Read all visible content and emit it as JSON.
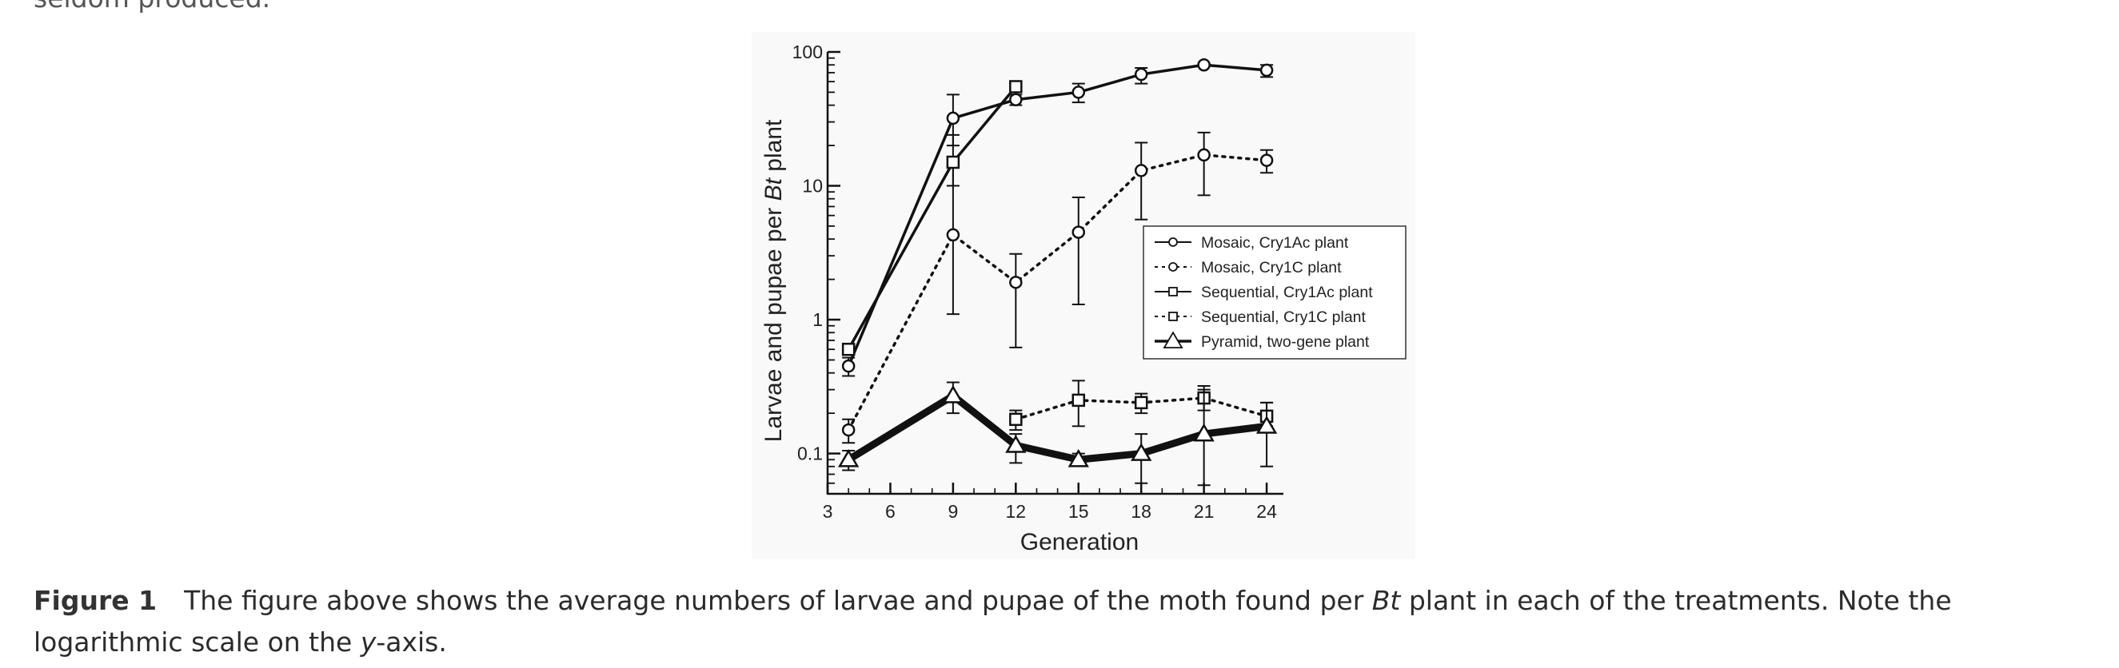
{
  "page": {
    "preceding_text": "seldom produced.",
    "caption": {
      "label": "Figure 1",
      "text_part1": "The figure above shows the average numbers of larvae and pupae of the moth found per ",
      "italic1": "Bt",
      "text_part2": " plant in each of the treatments. Note the logarithmic scale on the ",
      "italic2": "y",
      "text_part3": "-axis."
    }
  },
  "chart_data": {
    "type": "line",
    "title": "",
    "xlabel": "Generation",
    "ylabel_prefix": "Larvae and pupae per ",
    "ylabel_italic": "Bt",
    "ylabel_suffix": " plant",
    "y_scale": "log",
    "xlim": [
      3,
      24.8
    ],
    "ylim": [
      0.05,
      100
    ],
    "x_ticks": [
      3,
      6,
      9,
      12,
      15,
      18,
      21,
      24
    ],
    "y_ticks": [
      0.1,
      1,
      10,
      100
    ],
    "y_tick_labels": [
      "0.1",
      "1",
      "10",
      "100"
    ],
    "grid": false,
    "legend_position": "center-right",
    "series": [
      {
        "name": "Mosaic, Cry1Ac plant",
        "line_style": "solid",
        "line_weight": "normal",
        "marker": "circle",
        "x": [
          4,
          9,
          12,
          15,
          18,
          21,
          24
        ],
        "y": [
          0.45,
          32,
          44,
          50,
          68,
          80,
          73
        ],
        "err_low": [
          0.38,
          20,
          40,
          42,
          58,
          78,
          65
        ],
        "err_high": [
          0.52,
          48,
          48,
          58,
          76,
          82,
          80
        ]
      },
      {
        "name": "Mosaic, Cry1C plant",
        "line_style": "dotted",
        "line_weight": "normal",
        "marker": "circle",
        "x": [
          4,
          9,
          12,
          15,
          18,
          21,
          24
        ],
        "y": [
          0.15,
          4.3,
          1.9,
          4.5,
          13,
          17,
          15.5
        ],
        "err_low": [
          0.12,
          1.1,
          0.62,
          1.3,
          5.6,
          8.5,
          12.5
        ],
        "err_high": [
          0.18,
          14,
          3.1,
          8.2,
          21,
          25,
          18.5
        ]
      },
      {
        "name": "Sequential, Cry1Ac plant",
        "line_style": "solid",
        "line_weight": "normal",
        "marker": "square",
        "x": [
          4,
          9,
          12
        ],
        "y": [
          0.6,
          15,
          55
        ],
        "err_low": [
          0.55,
          10,
          52
        ],
        "err_high": [
          0.65,
          24,
          58
        ]
      },
      {
        "name": "Sequential, Cry1C plant",
        "line_style": "dotted",
        "line_weight": "normal",
        "marker": "square",
        "x": [
          12,
          15,
          18,
          21,
          24
        ],
        "y": [
          0.18,
          0.25,
          0.24,
          0.26,
          0.19
        ],
        "err_low": [
          0.15,
          0.16,
          0.2,
          0.21,
          0.16
        ],
        "err_high": [
          0.21,
          0.35,
          0.28,
          0.32,
          0.24
        ]
      },
      {
        "name": "Pyramid, two-gene plant",
        "line_style": "solid",
        "line_weight": "bold",
        "marker": "triangle",
        "x": [
          4,
          9,
          12,
          15,
          18,
          21,
          24
        ],
        "y": [
          0.09,
          0.27,
          0.115,
          0.09,
          0.1,
          0.14,
          0.16
        ],
        "err_low": [
          0.075,
          0.2,
          0.085,
          0.082,
          0.06,
          0.058,
          0.08
        ],
        "err_high": [
          0.105,
          0.34,
          0.14,
          0.1,
          0.14,
          0.3,
          0.24
        ]
      }
    ]
  }
}
